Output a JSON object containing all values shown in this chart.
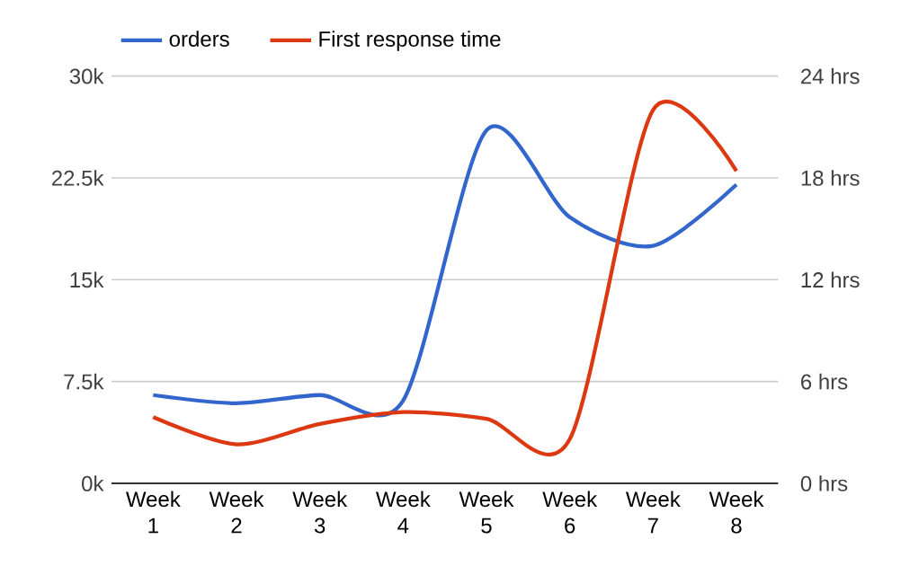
{
  "chart_data": {
    "type": "line",
    "categories": [
      "Week 1",
      "Week 2",
      "Week 3",
      "Week 4",
      "Week 5",
      "Week 6",
      "Week 7",
      "Week 8"
    ],
    "series": [
      {
        "name": "orders",
        "color": "#3366cc",
        "values": [
          6500,
          5900,
          6500,
          6100,
          26000,
          19600,
          17500,
          22000
        ]
      },
      {
        "name": "First response time",
        "color": "#dc3912",
        "axis": "y2",
        "values": [
          3.9,
          2.3,
          3.5,
          4.2,
          3.8,
          2.6,
          22.0,
          18.4
        ]
      }
    ],
    "ylim": [
      0,
      30000
    ],
    "yticks": [
      {
        "value": 0,
        "label": "0k"
      },
      {
        "value": 7500,
        "label": "7.5k"
      },
      {
        "value": 15000,
        "label": "15k"
      },
      {
        "value": 22500,
        "label": "22.5k"
      },
      {
        "value": 30000,
        "label": "30k"
      }
    ],
    "y2lim": [
      0,
      24
    ],
    "y2ticks": [
      {
        "value": 0,
        "label": "0 hrs"
      },
      {
        "value": 6,
        "label": "6 hrs"
      },
      {
        "value": 12,
        "label": "12 hrs"
      },
      {
        "value": 18,
        "label": "18 hrs"
      },
      {
        "value": 24,
        "label": "24 hrs"
      }
    ],
    "grid": "y",
    "legend": "top",
    "marker": "none",
    "line_style": "solid"
  }
}
